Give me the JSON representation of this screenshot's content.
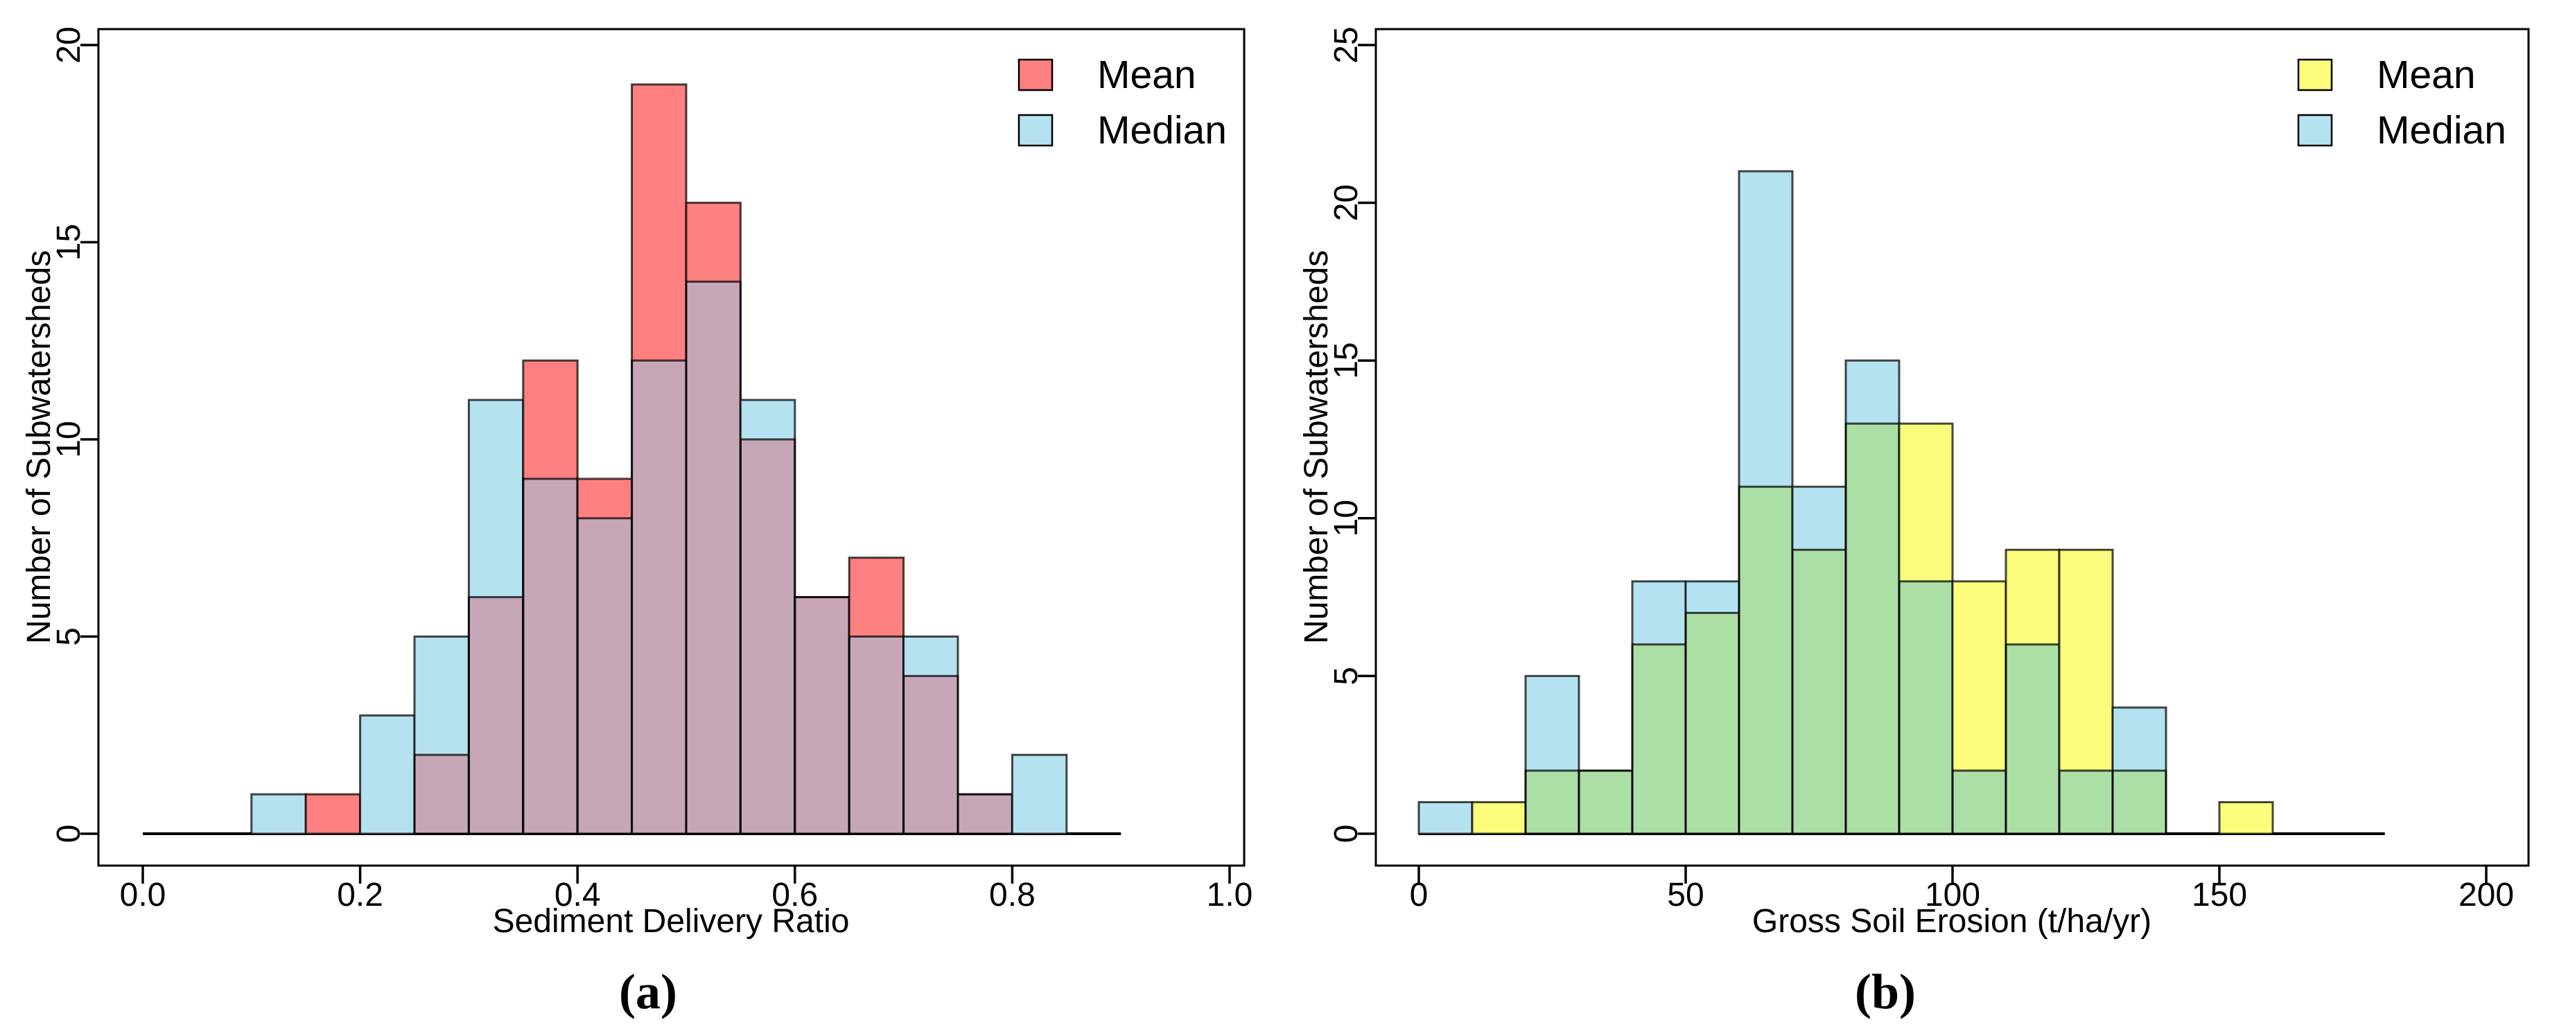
{
  "figure": {
    "background": "#ffffff",
    "captions": {
      "a": "(a)",
      "b": "(b)"
    }
  },
  "colors": {
    "axis": "#000000",
    "bar_border": "rgba(0,0,0,0.72)",
    "mean_left": "#FF8080",
    "median_left": "#B5E2F0",
    "overlap_left": "#C6A6B7",
    "mean_right": "#FBFB7C",
    "median_right": "#B5E2F0",
    "overlap_right": "#ABDFA5"
  },
  "chart_data": [
    {
      "type": "bar",
      "subtype": "overlapping-histogram",
      "panel": "a",
      "caption": "(a)",
      "xlabel": "Sediment Delivery Ratio",
      "ylabel": "Number of Subwatersheds",
      "xlim": [
        0,
        1.0
      ],
      "ylim": [
        0,
        20
      ],
      "xticks": [
        0,
        0.2,
        0.4,
        0.6,
        0.8,
        1.0
      ],
      "xtick_labels": [
        "0.0",
        "0.2",
        "0.4",
        "0.6",
        "0.8",
        "1.0"
      ],
      "yticks": [
        0,
        5,
        10,
        15,
        20
      ],
      "ytick_labels": [
        "0",
        "5",
        "10",
        "15",
        "20"
      ],
      "bin_width": 0.05,
      "bin_starts": [
        0.1,
        0.15,
        0.2,
        0.25,
        0.3,
        0.35,
        0.4,
        0.45,
        0.5,
        0.55,
        0.6,
        0.65,
        0.7,
        0.75,
        0.8
      ],
      "series": [
        {
          "name": "Mean",
          "color": "#FF8080",
          "counts": [
            0,
            1,
            0,
            2,
            6,
            12,
            9,
            19,
            16,
            10,
            6,
            7,
            4,
            1,
            0
          ]
        },
        {
          "name": "Median",
          "color": "#B5E2F0",
          "counts": [
            1,
            0,
            3,
            5,
            11,
            9,
            8,
            12,
            14,
            11,
            6,
            5,
            5,
            1,
            2
          ]
        }
      ],
      "overlap_color": "#C6A6B7",
      "axis_line_extent": [
        0,
        0.9
      ],
      "legend_position": "top-right",
      "grid": false
    },
    {
      "type": "bar",
      "subtype": "overlapping-histogram",
      "panel": "b",
      "caption": "(b)",
      "xlabel": "Gross Soil Erosion (t/ha/yr)",
      "ylabel": "Number of Subwatersheds",
      "xlim": [
        0,
        200
      ],
      "ylim": [
        0,
        25
      ],
      "xticks": [
        0,
        50,
        100,
        150,
        200
      ],
      "xtick_labels": [
        "0",
        "50",
        "100",
        "150",
        "200"
      ],
      "yticks": [
        0,
        5,
        10,
        15,
        20,
        25
      ],
      "ytick_labels": [
        "0",
        "5",
        "10",
        "15",
        "20",
        "25"
      ],
      "bin_width": 10,
      "bin_starts": [
        0,
        10,
        20,
        30,
        40,
        50,
        60,
        70,
        80,
        90,
        100,
        110,
        120,
        130,
        140,
        150
      ],
      "series": [
        {
          "name": "Mean",
          "color": "#FBFB7C",
          "counts": [
            0,
            1,
            2,
            2,
            6,
            7,
            11,
            9,
            13,
            13,
            8,
            9,
            9,
            2,
            0,
            1
          ]
        },
        {
          "name": "Median",
          "color": "#B5E2F0",
          "counts": [
            1,
            0,
            5,
            2,
            8,
            8,
            21,
            11,
            15,
            8,
            2,
            6,
            2,
            4,
            0,
            0
          ]
        }
      ],
      "overlap_color": "#ABDFA5",
      "axis_line_extent": [
        0,
        181
      ],
      "legend_position": "top-right",
      "grid": false
    }
  ]
}
